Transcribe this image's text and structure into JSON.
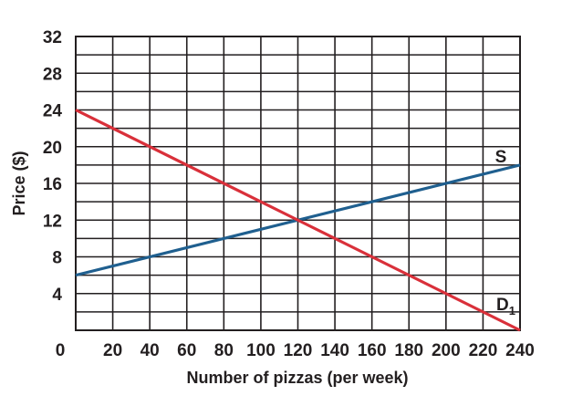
{
  "chart_data": {
    "type": "line",
    "xlabel": "Number of pizzas (per week)",
    "ylabel": "Price ($)",
    "xlim": [
      0,
      240
    ],
    "ylim": [
      0,
      32
    ],
    "x_ticks": [
      "0",
      "20",
      "40",
      "60",
      "80",
      "100",
      "120",
      "140",
      "160",
      "180",
      "200",
      "220",
      "240"
    ],
    "y_ticks": [
      "4",
      "8",
      "12",
      "16",
      "20",
      "24",
      "28",
      "32"
    ],
    "grid": "on",
    "series": [
      {
        "name": "S",
        "color": "#1f5f8f",
        "x": [
          0,
          120,
          240
        ],
        "y": [
          6,
          12,
          18
        ]
      },
      {
        "name": "D",
        "name_subscript": "1",
        "color": "#d9303a",
        "x": [
          0,
          120,
          240
        ],
        "y": [
          24,
          12,
          0
        ]
      }
    ]
  }
}
